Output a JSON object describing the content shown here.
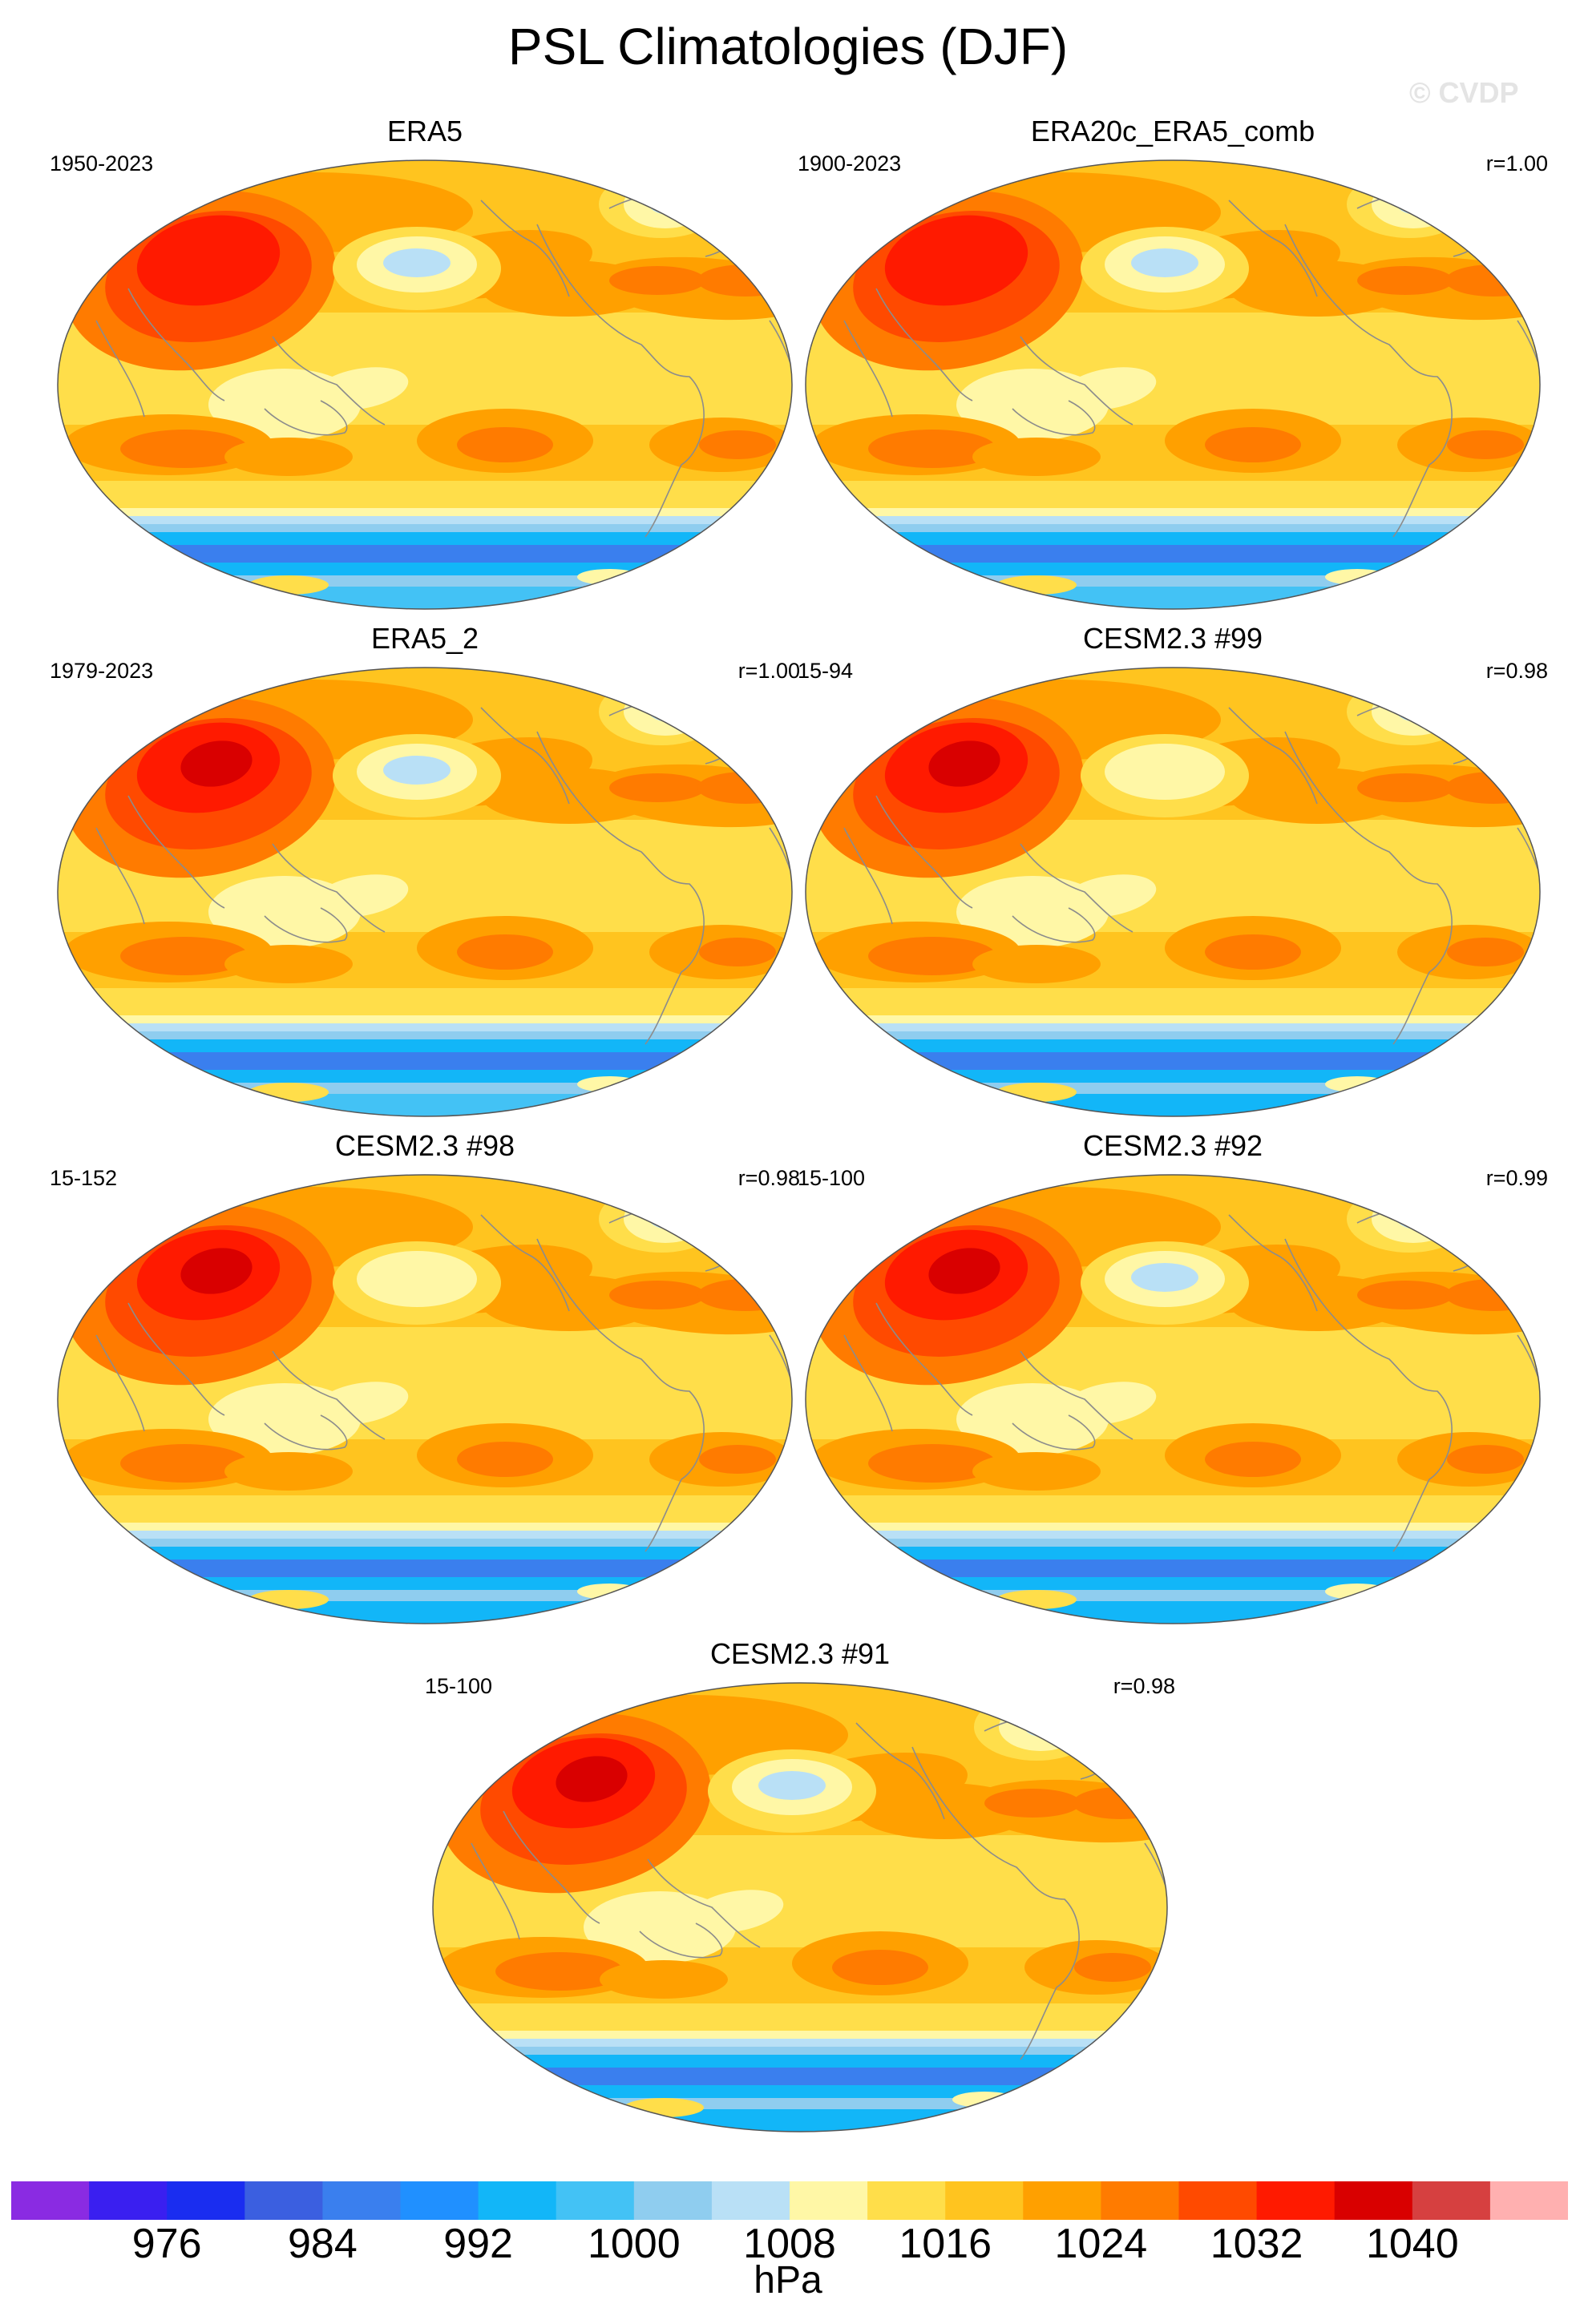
{
  "title": "PSL Climatologies (DJF)",
  "watermark": "© CVDP",
  "chart_data": {
    "type": "heatmap",
    "variable": "PSL",
    "season": "DJF",
    "units": "hPa",
    "colorbar": {
      "levels": [
        972,
        976,
        980,
        984,
        988,
        992,
        996,
        1000,
        1004,
        1008,
        1012,
        1016,
        1020,
        1024,
        1028,
        1032,
        1036,
        1040,
        1044
      ],
      "labeled_ticks": [
        "976",
        "984",
        "992",
        "1000",
        "1008",
        "1016",
        "1024",
        "1032",
        "1040"
      ],
      "colors": [
        "#8a2be2",
        "#3a1ff0",
        "#1a2df0",
        "#3b5fe0",
        "#3a7fee",
        "#2090ff",
        "#12b6f8",
        "#43c2f5",
        "#8fcdef",
        "#b9e0f6",
        "#fff7a6",
        "#ffde4a",
        "#ffc41f",
        "#ffa000",
        "#ff7b00",
        "#ff4a00",
        "#ff1a00",
        "#d90000",
        "#d64040",
        "#ffb0b0"
      ]
    },
    "panels": [
      {
        "title": "ERA5",
        "years": "1950-2023",
        "r": "",
        "pattern": {
          "siberian_high": 1032,
          "aleutian_low": 1004,
          "icelandic_low": 1004,
          "sh_subtropical_high": 1024,
          "maritime_continent": 1008,
          "southern_ocean_min": 984,
          "antarctic": 996
        }
      },
      {
        "title": "ERA20c_ERA5_comb",
        "years": "1900-2023",
        "r": "r=1.00",
        "pattern": {
          "siberian_high": 1032,
          "aleutian_low": 1004,
          "icelandic_low": 1004,
          "sh_subtropical_high": 1024,
          "maritime_continent": 1008,
          "southern_ocean_min": 984,
          "antarctic": 996
        }
      },
      {
        "title": "ERA5_2",
        "years": "1979-2023",
        "r": "r=1.00",
        "pattern": {
          "siberian_high": 1036,
          "aleutian_low": 1004,
          "icelandic_low": 1004,
          "sh_subtropical_high": 1024,
          "maritime_continent": 1008,
          "southern_ocean_min": 984,
          "antarctic": 996
        }
      },
      {
        "title": "CESM2.3 #99",
        "years": "15-94",
        "r": "r=0.98",
        "pattern": {
          "siberian_high": 1036,
          "aleutian_low": 1008,
          "icelandic_low": 1000,
          "sh_subtropical_high": 1024,
          "maritime_continent": 1008,
          "southern_ocean_min": 984,
          "antarctic": 992
        }
      },
      {
        "title": "CESM2.3 #98",
        "years": "15-152",
        "r": "r=0.98",
        "pattern": {
          "siberian_high": 1036,
          "aleutian_low": 1008,
          "icelandic_low": 1000,
          "sh_subtropical_high": 1024,
          "maritime_continent": 1008,
          "southern_ocean_min": 984,
          "antarctic": 992
        }
      },
      {
        "title": "CESM2.3 #92",
        "years": "15-100",
        "r": "r=0.99",
        "pattern": {
          "siberian_high": 1036,
          "aleutian_low": 1004,
          "icelandic_low": 1000,
          "sh_subtropical_high": 1024,
          "maritime_continent": 1008,
          "southern_ocean_min": 984,
          "antarctic": 992
        }
      },
      {
        "title": "CESM2.3 #91",
        "years": "15-100",
        "r": "r=0.98",
        "pattern": {
          "siberian_high": 1036,
          "aleutian_low": 1004,
          "icelandic_low": 1000,
          "sh_subtropical_high": 1024,
          "maritime_continent": 1008,
          "southern_ocean_min": 984,
          "antarctic": 992
        }
      }
    ]
  }
}
